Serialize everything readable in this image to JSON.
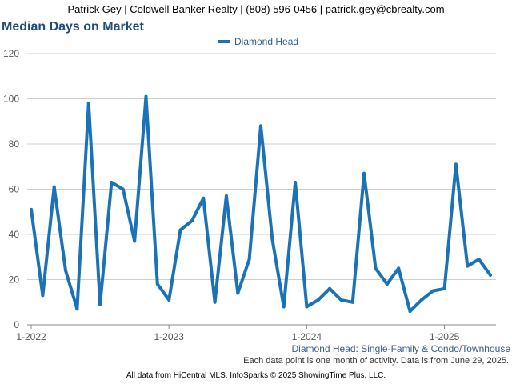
{
  "header": {
    "contact": "Patrick Gey | Coldwell Banker Realty | (808) 596-0456 | patrick.gey@cbrealty.com"
  },
  "chart_data": {
    "type": "line",
    "title": "Median Days on Market",
    "xlabel": "",
    "ylabel": "",
    "ylim": [
      0,
      120
    ],
    "yticks": [
      0,
      20,
      40,
      60,
      80,
      100,
      120
    ],
    "grid": true,
    "legend_position": "top-center",
    "x_tick_labels": [
      "1-2022",
      "1-2023",
      "1-2024",
      "1-2025"
    ],
    "x": [
      "2022-01",
      "2022-02",
      "2022-03",
      "2022-04",
      "2022-05",
      "2022-06",
      "2022-07",
      "2022-08",
      "2022-09",
      "2022-10",
      "2022-11",
      "2022-12",
      "2023-01",
      "2023-02",
      "2023-03",
      "2023-04",
      "2023-05",
      "2023-06",
      "2023-07",
      "2023-08",
      "2023-09",
      "2023-10",
      "2023-11",
      "2023-12",
      "2024-01",
      "2024-02",
      "2024-03",
      "2024-04",
      "2024-05",
      "2024-06",
      "2024-07",
      "2024-08",
      "2024-09",
      "2024-10",
      "2024-11",
      "2024-12",
      "2025-01",
      "2025-02",
      "2025-03",
      "2025-04",
      "2025-05"
    ],
    "series": [
      {
        "name": "Diamond Head",
        "color": "#1a73b8",
        "values": [
          51,
          13,
          61,
          24,
          7,
          98,
          9,
          63,
          60,
          37,
          101,
          18,
          11,
          42,
          46,
          56,
          10,
          57,
          14,
          29,
          88,
          38,
          8,
          63,
          8,
          11,
          16,
          11,
          10,
          67,
          25,
          18,
          25,
          6,
          11,
          15,
          16,
          71,
          26,
          29,
          22
        ]
      }
    ]
  },
  "captions": {
    "series_caption": "Diamond Head: Single-Family & Condo/Townhouse",
    "note": "Each data point is one month of activity. Data is from June 29, 2025.",
    "footer": "All data from HiCentral MLS. InfoSparks © 2025 ShowingTime Plus, LLC."
  }
}
